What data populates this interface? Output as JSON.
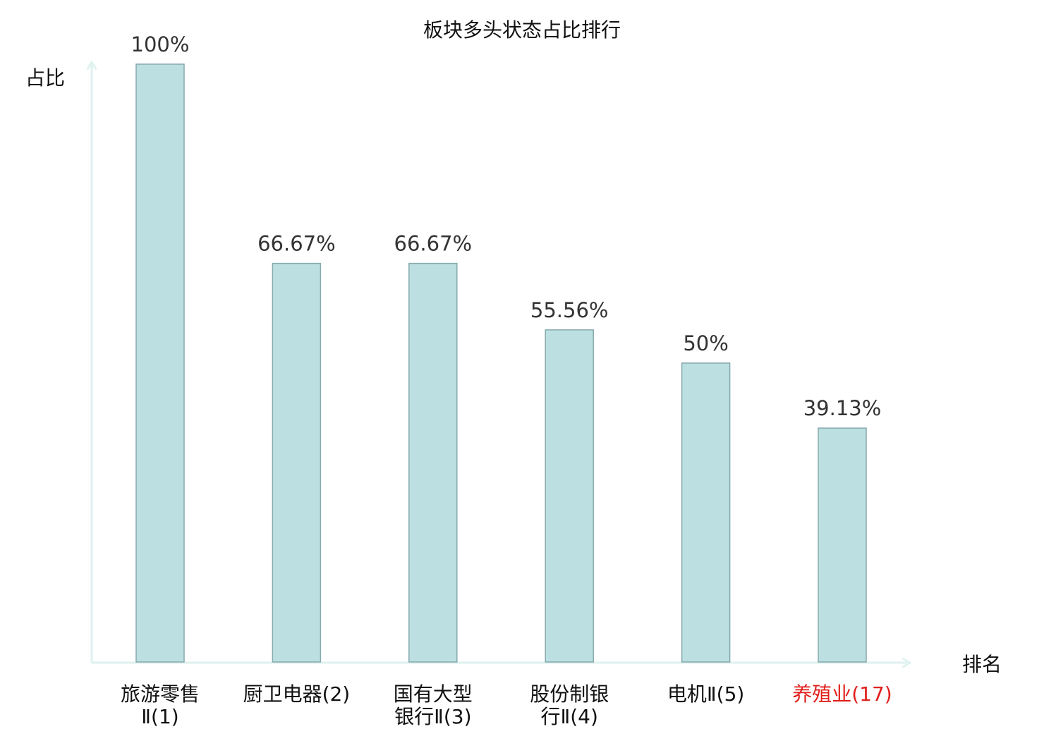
{
  "colors": {
    "bar_fill": "#bce0e2",
    "bar_stroke": "#86a9ad",
    "axis": "#dff2ef",
    "text": "#333333",
    "value_text": "#333333",
    "highlight": "#e0201c"
  },
  "chart_data": {
    "type": "bar",
    "title": "板块多头状态占比排行",
    "ylabel": "占比",
    "xlabel": "排名",
    "ylim": [
      0,
      100
    ],
    "grid": false,
    "legend": "none",
    "categories": [
      {
        "lines": [
          "旅游零售",
          "Ⅱ(1)"
        ],
        "highlight": false
      },
      {
        "lines": [
          "厨卫电器(2)"
        ],
        "highlight": false
      },
      {
        "lines": [
          "国有大型",
          "银行Ⅱ(3)"
        ],
        "highlight": false
      },
      {
        "lines": [
          "股份制银",
          "行Ⅱ(4)"
        ],
        "highlight": false
      },
      {
        "lines": [
          "电机Ⅱ(5)"
        ],
        "highlight": false
      },
      {
        "lines": [
          "养殖业(17)"
        ],
        "highlight": true
      }
    ],
    "values": [
      100,
      66.67,
      66.67,
      55.56,
      50,
      39.13
    ],
    "value_labels": [
      "100%",
      "66.67%",
      "66.67%",
      "55.56%",
      "50%",
      "39.13%"
    ]
  }
}
